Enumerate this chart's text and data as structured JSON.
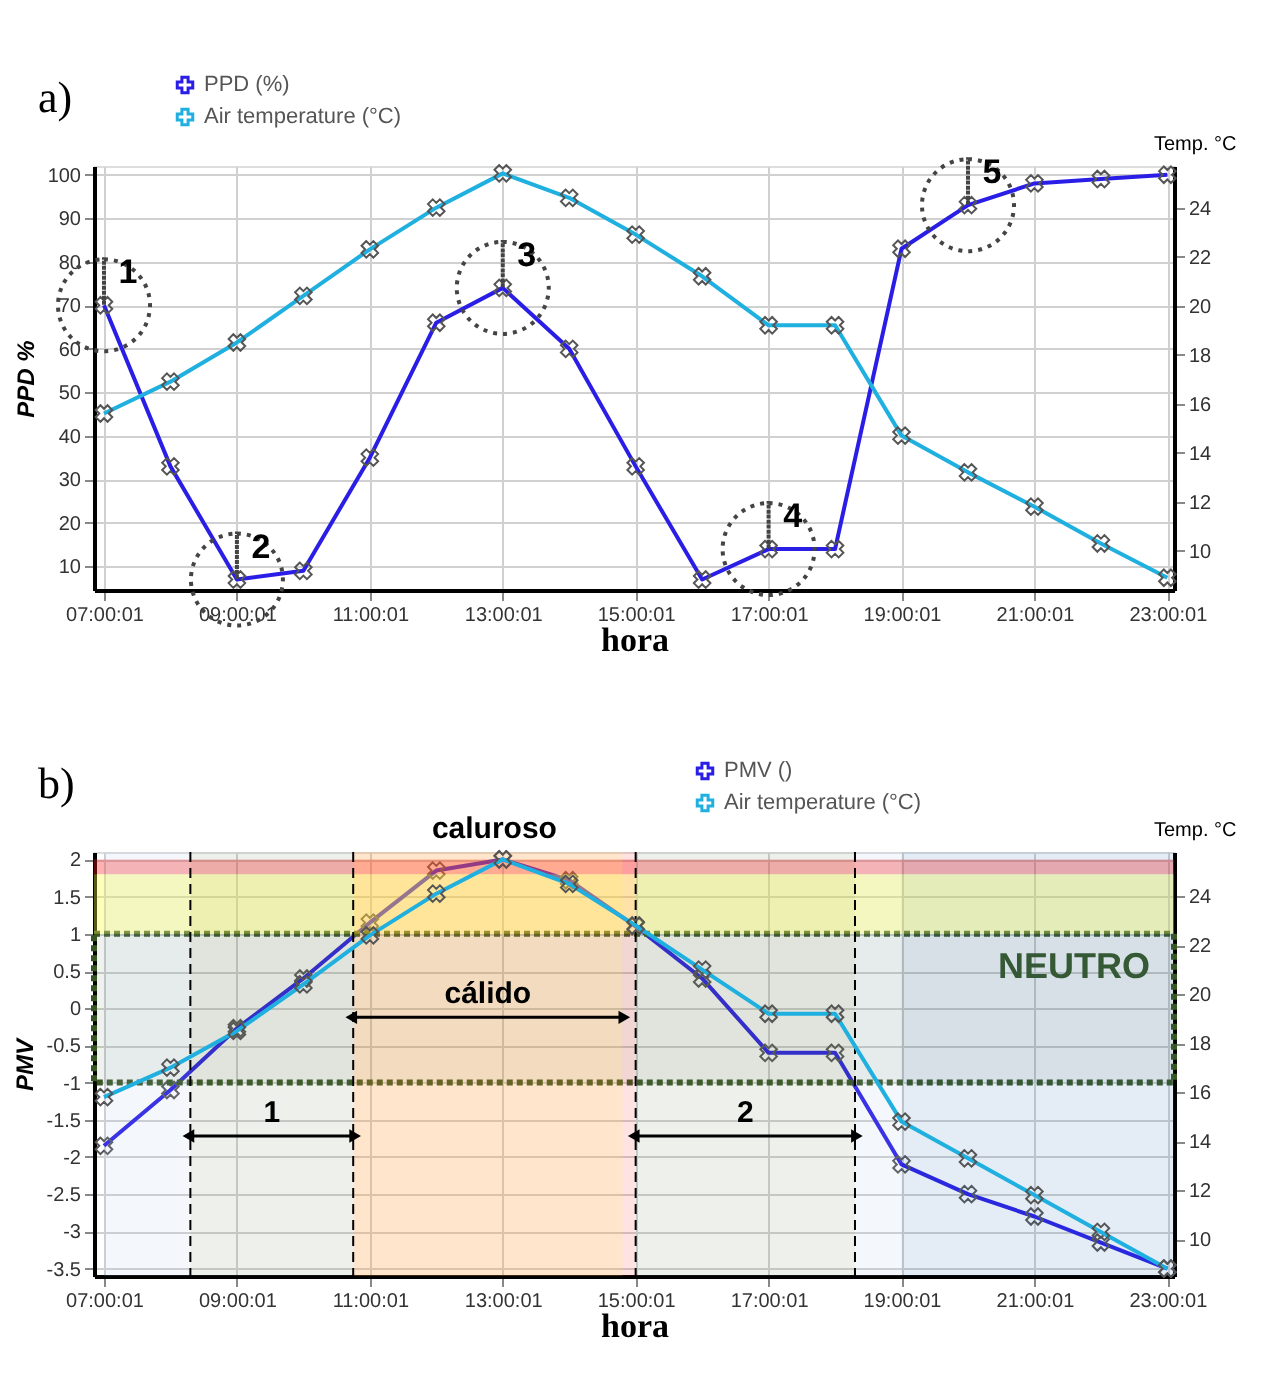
{
  "chart_data": [
    {
      "type": "line",
      "title": "a)",
      "xlabel": "hora",
      "ylabel": "PPD %",
      "y2label": "Temp. °C",
      "x": [
        7.0003,
        8.0003,
        9.0003,
        10.0003,
        11.0003,
        12.0003,
        13.0003,
        14.0003,
        15.0003,
        16.0003,
        17.0003,
        18.0003,
        19.0003,
        20.0003,
        21.0003,
        22.0003,
        23.0003
      ],
      "xlim": [
        6.85,
        23.1
      ],
      "xticks": [
        {
          "value": 7.0003,
          "label": "07:00:01"
        },
        {
          "value": 9.0003,
          "label": "09:00:01"
        },
        {
          "value": 11.0003,
          "label": "11:00:01"
        },
        {
          "value": 13.0003,
          "label": "13:00:01"
        },
        {
          "value": 15.0003,
          "label": "15:00:01"
        },
        {
          "value": 17.0003,
          "label": "17:00:01"
        },
        {
          "value": 19.0003,
          "label": "19:00:01"
        },
        {
          "value": 21.0003,
          "label": "21:00:01"
        },
        {
          "value": 23.0003,
          "label": "23:00:01"
        }
      ],
      "ylim": [
        4.6,
        102
      ],
      "yticks": [
        10,
        20,
        30,
        40,
        50,
        60,
        70,
        80,
        90,
        100
      ],
      "y2lim": [
        8.4,
        25.7
      ],
      "y2ticks": [
        10,
        12,
        14,
        16,
        18,
        20,
        22,
        24
      ],
      "grid": true,
      "legend": "top left",
      "marker": "cross",
      "series": [
        {
          "name": "PPD (%)",
          "color": "#2a1ee6",
          "values": [
            70,
            33,
            7,
            9,
            35,
            66,
            74,
            60,
            33,
            7,
            14,
            14,
            83,
            93,
            98,
            99,
            100
          ]
        },
        {
          "name": "Air temperature (°C)",
          "color": "#1fb0e0",
          "axis": "y2",
          "values": [
            15.6,
            16.9,
            18.5,
            20.4,
            22.3,
            24.0,
            25.4,
            24.4,
            22.9,
            21.2,
            19.2,
            19.2,
            14.7,
            13.2,
            11.8,
            10.3,
            8.9
          ]
        }
      ],
      "annotations": [
        {
          "text": "1",
          "x": 7.0003,
          "y": 70
        },
        {
          "text": "2",
          "x": 9.0003,
          "y": 7
        },
        {
          "text": "3",
          "x": 13.0003,
          "y": 74
        },
        {
          "text": "4",
          "x": 17.0003,
          "y": 14
        },
        {
          "text": "5",
          "x": 20.0003,
          "y": 93
        }
      ]
    },
    {
      "type": "line",
      "title": "b)",
      "xlabel": "hora",
      "ylabel": "PMV",
      "y2label": "Temp. °C",
      "x": [
        7.0003,
        8.0003,
        9.0003,
        10.0003,
        11.0003,
        12.0003,
        13.0003,
        14.0003,
        15.0003,
        16.0003,
        17.0003,
        18.0003,
        19.0003,
        20.0003,
        21.0003,
        22.0003,
        23.0003
      ],
      "xlim": [
        6.85,
        23.1
      ],
      "xticks": [
        {
          "value": 7.0003,
          "label": "07:00:01"
        },
        {
          "value": 9.0003,
          "label": "09:00:01"
        },
        {
          "value": 11.0003,
          "label": "11:00:01"
        },
        {
          "value": 13.0003,
          "label": "13:00:01"
        },
        {
          "value": 15.0003,
          "label": "15:00:01"
        },
        {
          "value": 17.0003,
          "label": "17:00:01"
        },
        {
          "value": 19.0003,
          "label": "19:00:01"
        },
        {
          "value": 21.0003,
          "label": "21:00:01"
        },
        {
          "value": 23.0003,
          "label": "23:00:01"
        }
      ],
      "ylim": [
        -3.6,
        2.1
      ],
      "yticks": [
        -3.5,
        -3,
        -2.5,
        -2,
        -1.5,
        -1,
        -0.5,
        0,
        0.5,
        1,
        1.5,
        2
      ],
      "y2lim": [
        8.5,
        25.8
      ],
      "y2ticks": [
        10,
        12,
        14,
        16,
        18,
        20,
        22,
        24
      ],
      "grid": true,
      "legend": "top right",
      "marker": "cross",
      "series": [
        {
          "name": "PMV ()",
          "color": "#2a1ee6",
          "values": [
            -1.85,
            -1.1,
            -0.27,
            0.4,
            1.15,
            1.85,
            2.0,
            1.72,
            1.1,
            0.4,
            -0.6,
            -0.6,
            -2.1,
            -2.5,
            -2.8,
            -3.15,
            -3.5
          ]
        },
        {
          "name": "Air temperature (°C)",
          "color": "#1fb0e0",
          "axis": "y2",
          "values": [
            15.8,
            17.0,
            18.5,
            20.4,
            22.4,
            24.1,
            25.5,
            24.5,
            22.8,
            21.0,
            19.2,
            19.2,
            14.8,
            13.3,
            11.8,
            10.3,
            8.8
          ]
        }
      ],
      "ref_lines": [
        {
          "axis": "x",
          "value": 8.3,
          "line_style": "dashed"
        },
        {
          "axis": "x",
          "value": 10.75,
          "line_style": "dashed"
        },
        {
          "axis": "x",
          "value": 15,
          "line_style": "dashed"
        },
        {
          "axis": "x",
          "value": 18.3,
          "line_style": "dashed"
        }
      ],
      "bands": [
        {
          "axis": "y",
          "from": -1,
          "to": 1,
          "label": "NEUTRO",
          "color": "#375623"
        },
        {
          "axis": "y",
          "from": 1.8,
          "to": 2.0,
          "color": "#ff2020"
        },
        {
          "axis": "y",
          "from": 1,
          "to": 1.8,
          "color": "#ffff40"
        },
        {
          "axis": "x",
          "from": 7,
          "to": 8.3,
          "color": "#a8c4e0"
        },
        {
          "axis": "x",
          "from": 8.3,
          "to": 10.75,
          "label": "1",
          "color": "#7c8a6a"
        },
        {
          "axis": "x",
          "from": 10.75,
          "to": 15,
          "label": "caluroso",
          "color": "#ff2020"
        },
        {
          "axis": "x",
          "from": 10.75,
          "to": 14.8,
          "label": "cálido",
          "color": "#ffff40"
        },
        {
          "axis": "x",
          "from": 15,
          "to": 18.3,
          "label": "2",
          "color": "#7c8a6a"
        },
        {
          "axis": "x",
          "from": 18.3,
          "to": 19,
          "color": "#a8c4e0"
        },
        {
          "axis": "x",
          "from": 19,
          "to": 23.1,
          "color": "#2e6fb0"
        }
      ]
    }
  ]
}
